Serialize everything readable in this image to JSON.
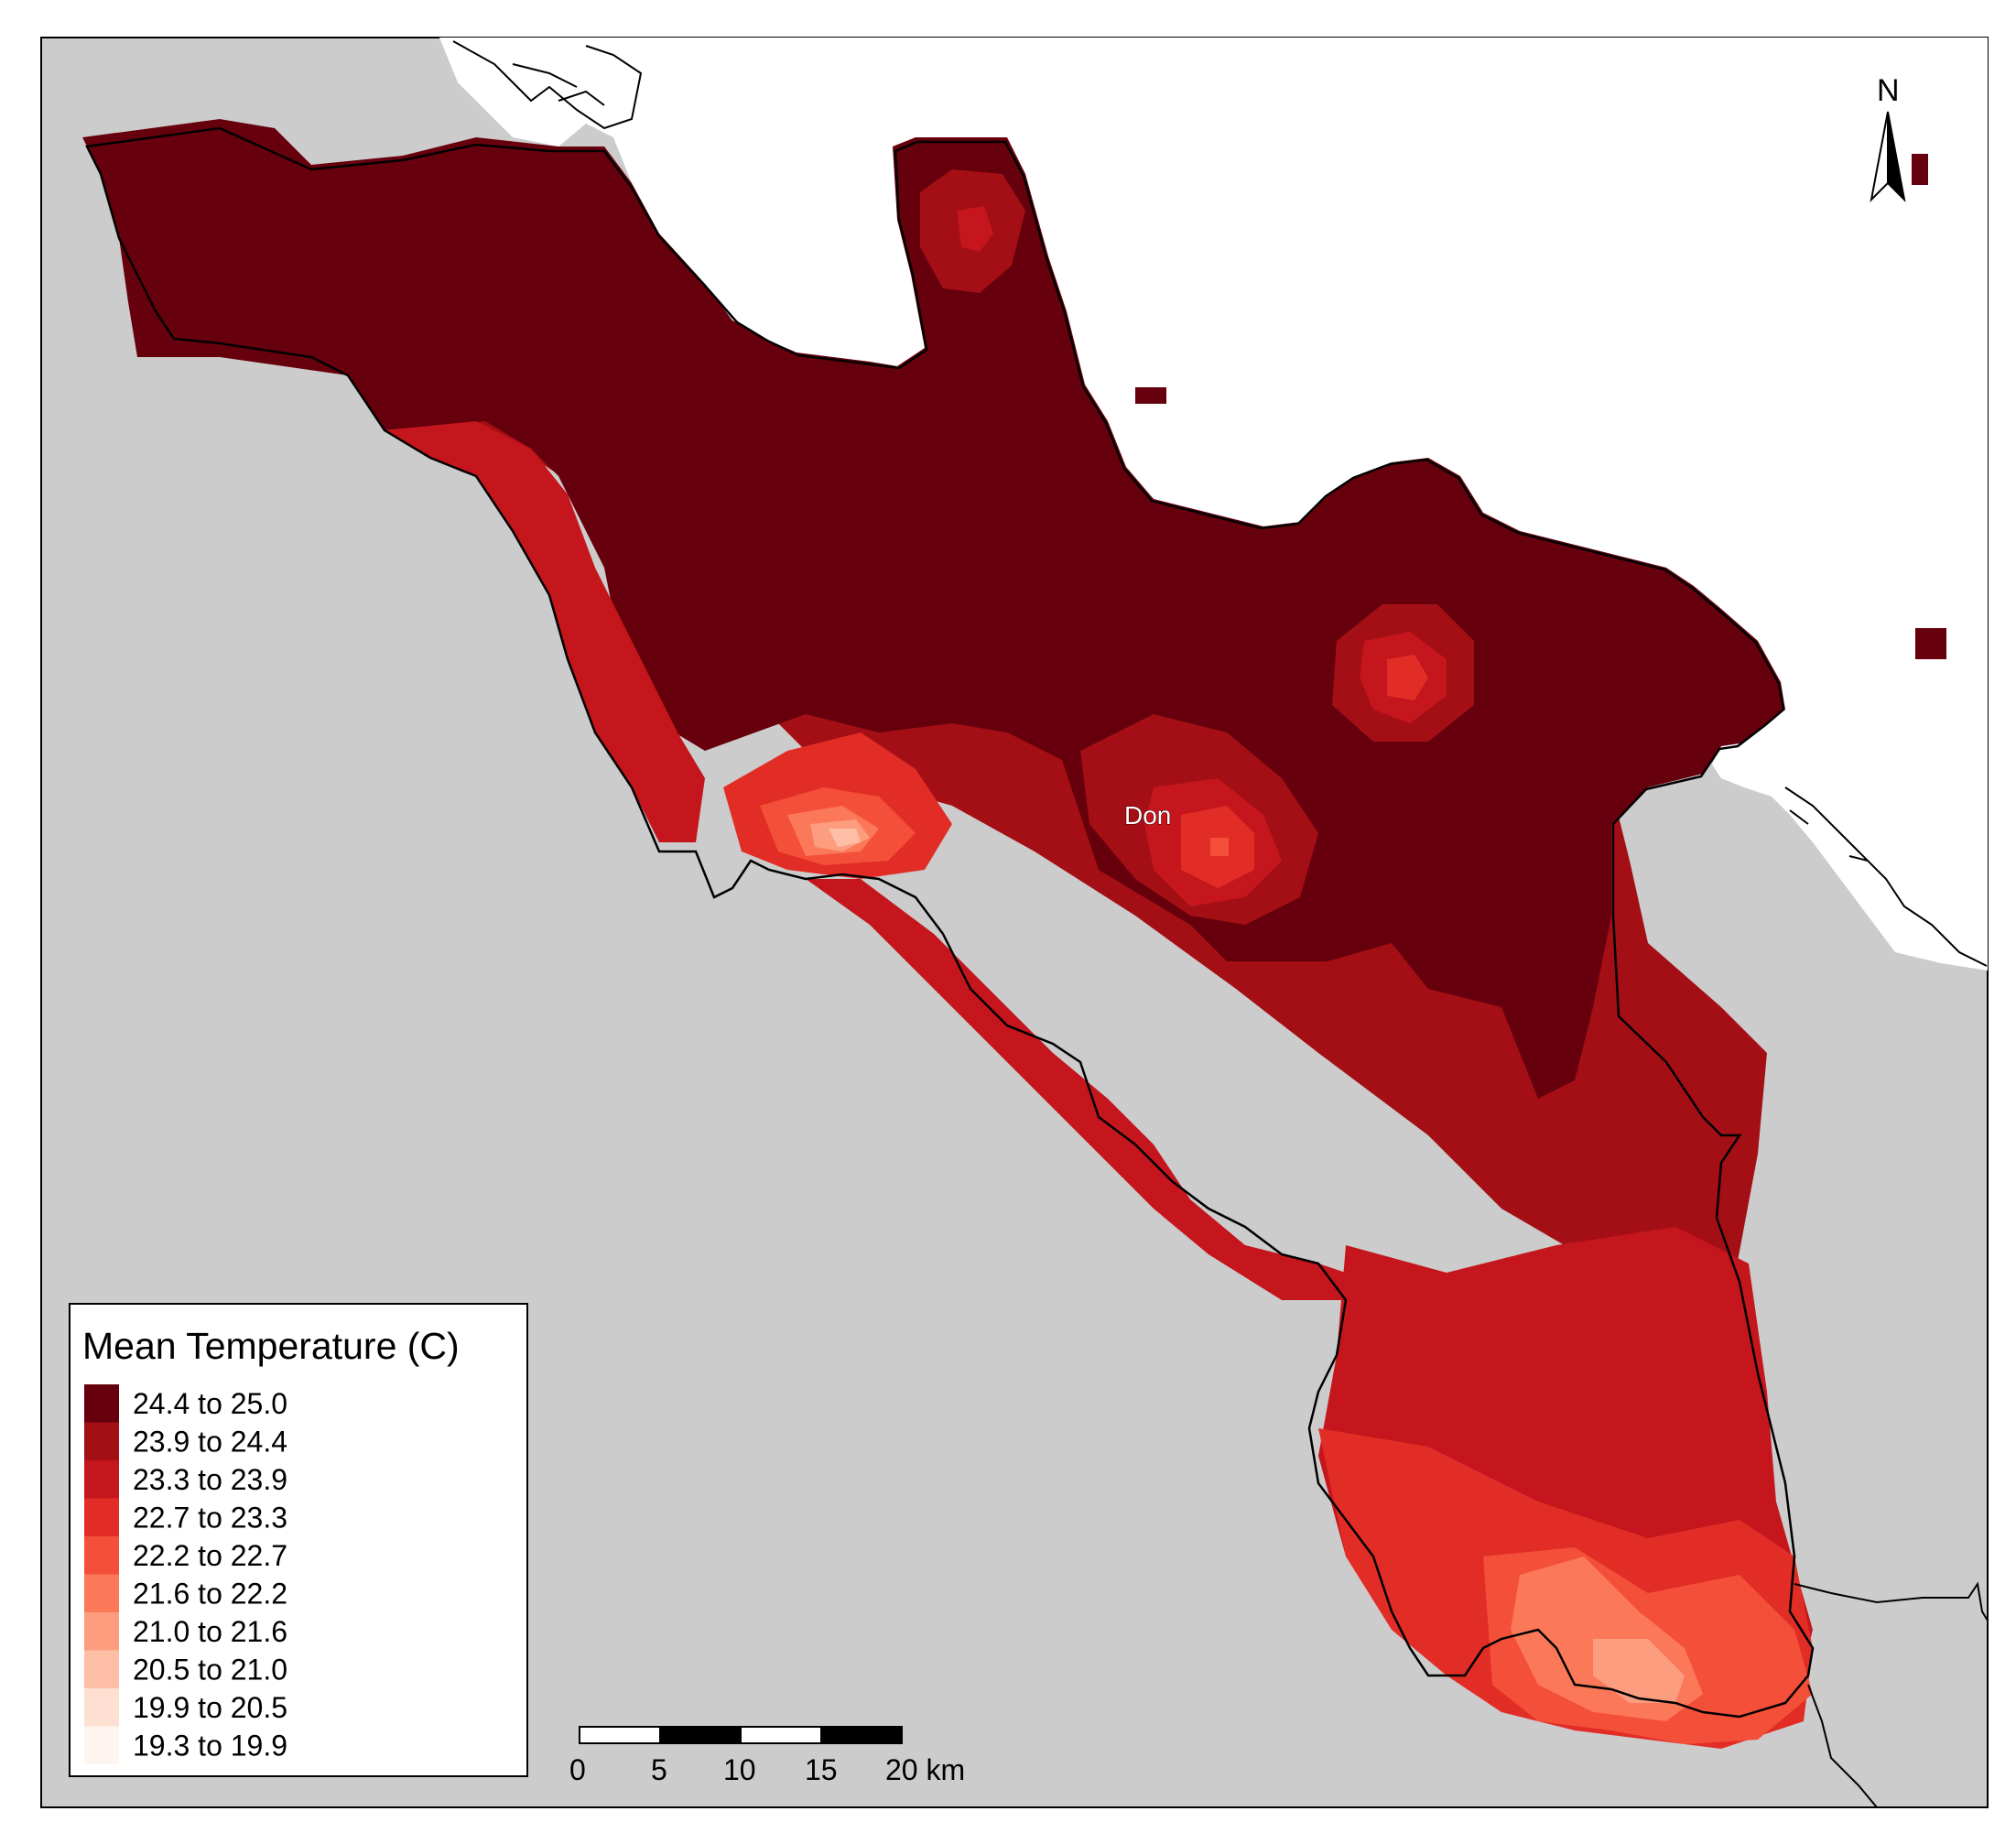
{
  "map": {
    "place_label": "Don",
    "north_label": "N",
    "colors": {
      "background_land": "#cccccc",
      "water": "#ffffff",
      "frame": "#000000"
    }
  },
  "legend": {
    "title": "Mean Temperature (C)",
    "classes": [
      {
        "label": "24.4 to 25.0",
        "color": "#67000d"
      },
      {
        "label": "23.9 to 24.4",
        "color": "#a30f15"
      },
      {
        "label": "23.3 to 23.9",
        "color": "#c4161c"
      },
      {
        "label": "22.7 to 23.3",
        "color": "#e22d27"
      },
      {
        "label": "22.2 to 22.7",
        "color": "#f44f39"
      },
      {
        "label": "21.6 to 22.2",
        "color": "#fb7858"
      },
      {
        "label": "21.0 to 21.6",
        "color": "#fc9d80"
      },
      {
        "label": "20.5 to 21.0",
        "color": "#fcbea5"
      },
      {
        "label": "19.9 to 20.5",
        "color": "#fee0d2"
      },
      {
        "label": "19.3 to 19.9",
        "color": "#fff5f0"
      }
    ]
  },
  "scale_bar": {
    "ticks": [
      "0",
      "5",
      "10",
      "15",
      "20 km"
    ]
  }
}
